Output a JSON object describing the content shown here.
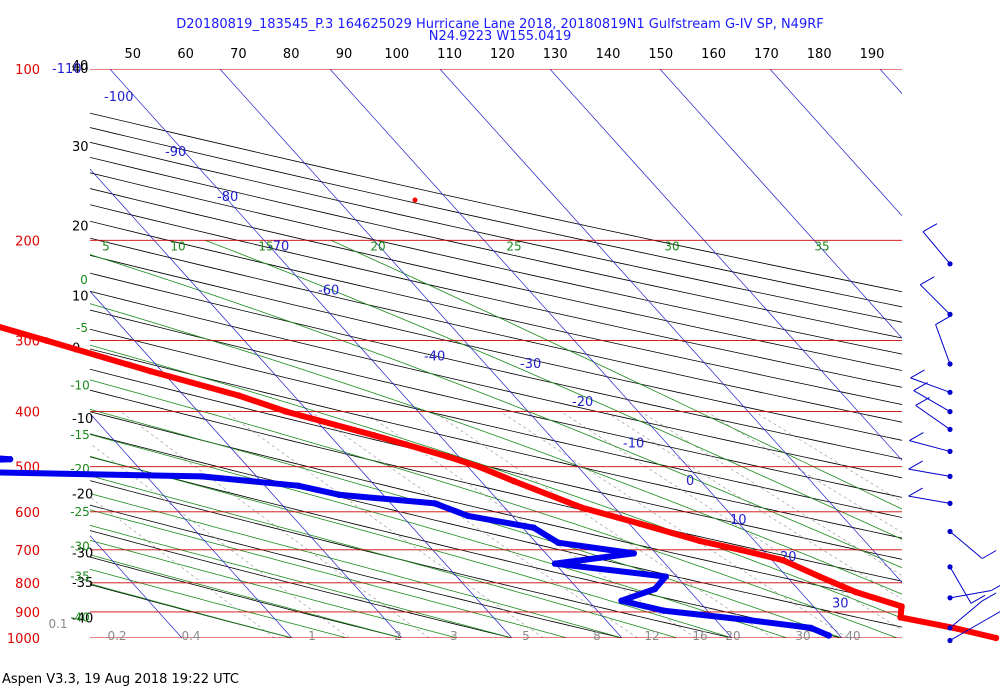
{
  "chart_data": {
    "type": "line",
    "title_line1": "D20180819_183545_P.3 164625029 Hurricane Lane 2018, 20180819N1 Gulfstream G-IV SP, N49RF",
    "title_line2": "N24.9223 W155.0419",
    "footer": "Aspen V3.3, 19 Aug 2018  19:22 UTC",
    "top_ticks_f": [
      "40",
      "50",
      "60",
      "70",
      "80",
      "90",
      "100",
      "110",
      "120",
      "130",
      "140",
      "150",
      "160",
      "170",
      "180",
      "190"
    ],
    "left_ticks_c": [
      {
        "label": "40",
        "p": 100
      },
      {
        "label": "30",
        "p": 137
      },
      {
        "label": "20",
        "p": 189
      },
      {
        "label": "10",
        "p": 251
      },
      {
        "label": "0",
        "p": 310
      },
      {
        "label": "-10",
        "p": 412
      },
      {
        "label": "-20",
        "p": 560
      },
      {
        "label": "-30",
        "p": 710
      },
      {
        "label": "-35",
        "p": 800
      },
      {
        "label": "-40",
        "p": 925
      }
    ],
    "pressure_levels": [
      "100",
      "200",
      "300",
      "400",
      "500",
      "600",
      "700",
      "800",
      "900",
      "1000"
    ],
    "pressure_values": [
      100,
      200,
      300,
      400,
      500,
      600,
      700,
      800,
      900,
      1000
    ],
    "isotherm_labels": [
      {
        "label": "-110",
        "p": 100
      },
      {
        "label": "-100",
        "p": 112
      },
      {
        "label": "-90",
        "p": 140
      },
      {
        "label": "-80",
        "p": 168
      },
      {
        "label": "-70",
        "p": 205
      },
      {
        "label": "-60",
        "p": 245
      },
      {
        "label": "-40",
        "p": 320
      },
      {
        "label": "-30",
        "p": 330
      },
      {
        "label": "-20",
        "p": 385
      },
      {
        "label": "-10",
        "p": 455
      },
      {
        "label": "0",
        "p": 530
      },
      {
        "label": "10",
        "p": 620
      },
      {
        "label": "20",
        "p": 720
      },
      {
        "label": "30",
        "p": 870
      }
    ],
    "adiabat_labels": [
      {
        "label": "5",
        "p": 205
      },
      {
        "label": "10",
        "p": 205
      },
      {
        "label": "15",
        "p": 205
      },
      {
        "label": "20",
        "p": 205
      },
      {
        "label": "25",
        "p": 205
      },
      {
        "label": "30",
        "p": 205
      },
      {
        "label": "35",
        "p": 205
      },
      {
        "label": "0",
        "p": 235
      },
      {
        "label": "-5",
        "p": 285
      },
      {
        "label": "-10",
        "p": 360
      },
      {
        "label": "-15",
        "p": 440
      },
      {
        "label": "-20",
        "p": 505
      },
      {
        "label": "-25",
        "p": 600
      },
      {
        "label": "-30",
        "p": 690
      },
      {
        "label": "-35",
        "p": 780
      },
      {
        "label": "-40",
        "p": 920
      }
    ],
    "mixing_ratio_labels": [
      "0.1",
      "0.2",
      "0.4",
      "1",
      "2",
      "3",
      "5",
      "8",
      "12",
      "16",
      "20",
      "30",
      "40"
    ],
    "temperature": [
      [
        200,
        -49
      ],
      [
        250,
        -46
      ],
      [
        275,
        -43
      ],
      [
        300,
        -38
      ],
      [
        340,
        -31
      ],
      [
        375,
        -25
      ],
      [
        400,
        -22
      ],
      [
        440,
        -16
      ],
      [
        480,
        -11
      ],
      [
        500,
        -9
      ],
      [
        530,
        -7
      ],
      [
        590,
        -3
      ],
      [
        630,
        1
      ],
      [
        675,
        5
      ],
      [
        700,
        8
      ],
      [
        730,
        11
      ],
      [
        780,
        13
      ],
      [
        830,
        15
      ],
      [
        880,
        18
      ],
      [
        920,
        17
      ],
      [
        960,
        21
      ],
      [
        1000,
        24
      ]
    ],
    "dewpoint": [
      [
        215,
        -68
      ],
      [
        240,
        -63
      ],
      [
        265,
        -61
      ],
      [
        290,
        -59
      ],
      [
        310,
        -63
      ],
      [
        330,
        -66
      ],
      [
        345,
        -61
      ],
      [
        365,
        -73
      ],
      [
        380,
        -72
      ],
      [
        400,
        -79
      ],
      [
        420,
        -73
      ],
      [
        440,
        -67
      ],
      [
        470,
        -60
      ],
      [
        485,
        -51
      ],
      [
        500,
        -70
      ],
      [
        510,
        -57
      ],
      [
        520,
        -35
      ],
      [
        540,
        -27
      ],
      [
        560,
        -24
      ],
      [
        580,
        -16
      ],
      [
        610,
        -14
      ],
      [
        640,
        -9
      ],
      [
        680,
        -8
      ],
      [
        710,
        -2
      ],
      [
        740,
        -10
      ],
      [
        780,
        -1
      ],
      [
        820,
        -3
      ],
      [
        860,
        -7
      ],
      [
        895,
        -4
      ],
      [
        930,
        3
      ],
      [
        960,
        8
      ],
      [
        990,
        9
      ]
    ],
    "wind_barb_levels": [
      220,
      270,
      330,
      370,
      400,
      430,
      470,
      520,
      580,
      650,
      750,
      850,
      960,
      1010
    ]
  }
}
